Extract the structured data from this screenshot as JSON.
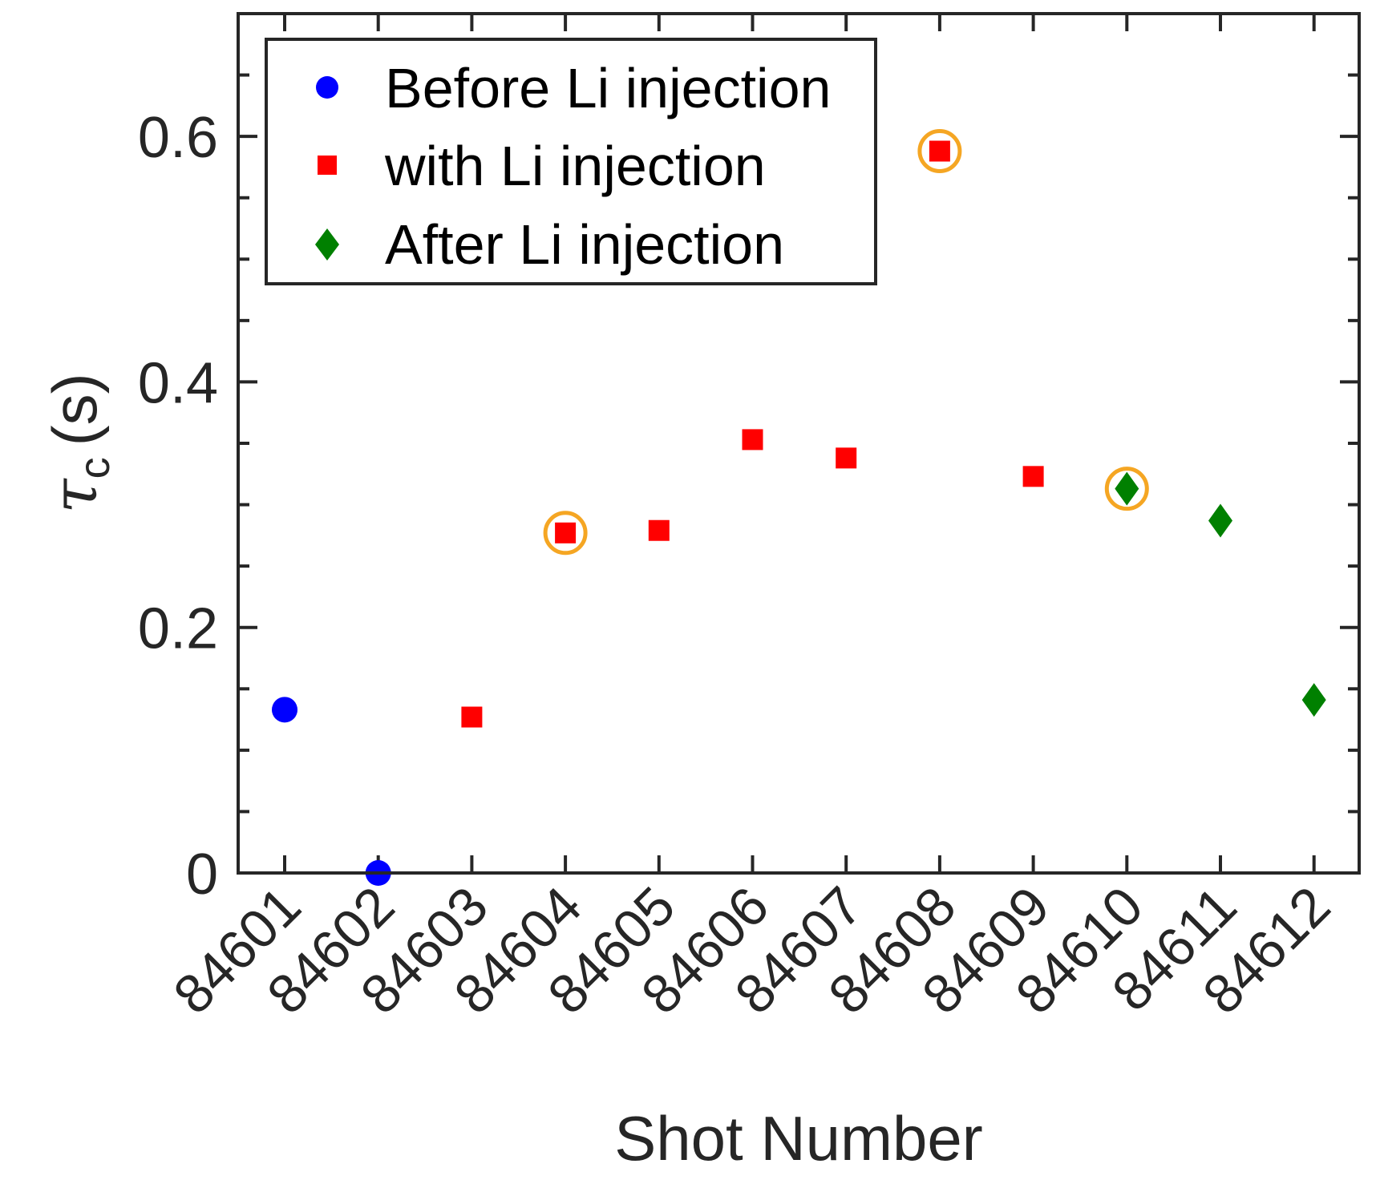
{
  "chart_data": {
    "type": "scatter",
    "xlabel": "Shot Number",
    "ylabel": "τ",
    "ylabel_subscript": "c",
    "ylabel_unit": "(s)",
    "categories": [
      "84601",
      "84602",
      "84603",
      "84604",
      "84605",
      "84606",
      "84607",
      "84608",
      "84609",
      "84610",
      "84611",
      "84612"
    ],
    "ylim": [
      0,
      0.7
    ],
    "yticks": [
      0,
      0.2,
      0.4,
      0.6
    ],
    "ytick_labels": [
      "0",
      "0.2",
      "0.4",
      "0.6"
    ],
    "grid": false,
    "legend_position": "top-left",
    "series": [
      {
        "name": "Before Li injection",
        "marker": "circle",
        "color": "#0000ff",
        "points": [
          {
            "x": "84601",
            "y": 0.133
          },
          {
            "x": "84602",
            "y": 0.0
          }
        ]
      },
      {
        "name": "with Li injection",
        "marker": "square",
        "color": "#ff0000",
        "points": [
          {
            "x": "84603",
            "y": 0.127
          },
          {
            "x": "84604",
            "y": 0.277
          },
          {
            "x": "84605",
            "y": 0.279
          },
          {
            "x": "84606",
            "y": 0.353
          },
          {
            "x": "84607",
            "y": 0.338
          },
          {
            "x": "84608",
            "y": 0.588
          },
          {
            "x": "84609",
            "y": 0.323
          }
        ]
      },
      {
        "name": "After Li injection",
        "marker": "diamond",
        "color": "#008000",
        "points": [
          {
            "x": "84610",
            "y": 0.313
          },
          {
            "x": "84611",
            "y": 0.287
          },
          {
            "x": "84612",
            "y": 0.141
          }
        ]
      }
    ],
    "highlighted": [
      {
        "x": "84604",
        "y": 0.277
      },
      {
        "x": "84608",
        "y": 0.588
      },
      {
        "x": "84610",
        "y": 0.313
      }
    ],
    "highlight_color": "#f5a623"
  }
}
